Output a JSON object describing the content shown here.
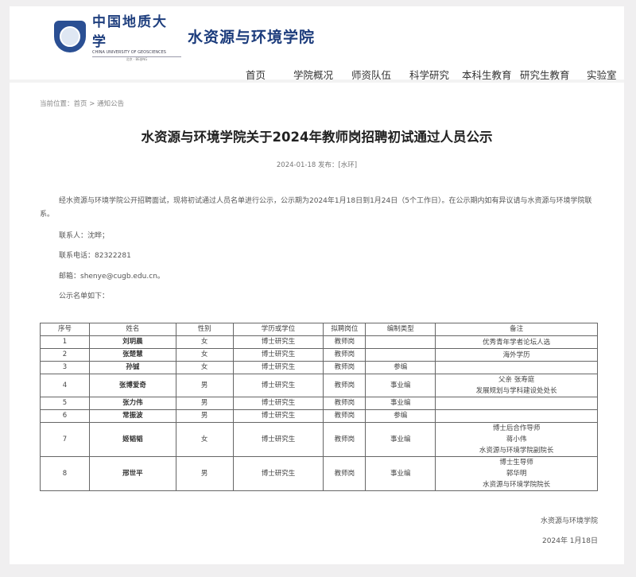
{
  "header": {
    "university_cn": "中国地质大学",
    "university_en": "CHINA UNIVERSITY OF GEOSCIENCES",
    "university_city": "北京 · BEIJING",
    "school": "水资源与环境学院",
    "nav": [
      "首页",
      "学院概况",
      "师资队伍",
      "科学研究",
      "本科生教育",
      "研究生教育",
      "实验室"
    ]
  },
  "breadcrumb": {
    "prefix": "当前位置：",
    "home": "首页",
    "sep": ">",
    "current": "通知公告"
  },
  "article": {
    "title": "水资源与环境学院关于2024年教师岗招聘初试通过人员公示",
    "meta": "2024-01-18 发布：[水环]",
    "intro": "经水资源与环境学院公开招聘面试，现将初试通过人员名单进行公示，公示期为2024年1月18日到1月24日（5个工作日）。在公示期内如有异议请与水资源与环境学院联系。",
    "contact": "联系人：沈晔；",
    "phone": "联系电话：82322281",
    "email": "邮箱：shenye@cugb.edu.cn。",
    "list_intro": "公示名单如下：",
    "signature": "水资源与环境学院",
    "date": "2024年 1月18日"
  },
  "table": {
    "headers": [
      "序号",
      "姓名",
      "性别",
      "学历或学位",
      "拟聘岗位",
      "编制类型",
      "备注"
    ],
    "rows": [
      [
        "1",
        "刘玥晨",
        "女",
        "博士研究生",
        "教师岗",
        "",
        [
          "优秀青年学者论坛人选"
        ]
      ],
      [
        "2",
        "张楚慧",
        "女",
        "博士研究生",
        "教师岗",
        "",
        [
          "海外学历"
        ]
      ],
      [
        "3",
        "孙铖",
        "女",
        "博士研究生",
        "教师岗",
        "参编",
        []
      ],
      [
        "4",
        "张博爱奇",
        "男",
        "博士研究生",
        "教师岗",
        "事业编",
        [
          "父亲 张寿庭",
          "发展规划与学科建设处处长"
        ]
      ],
      [
        "5",
        "张力伟",
        "男",
        "博士研究生",
        "教师岗",
        "事业编",
        []
      ],
      [
        "6",
        "常振波",
        "男",
        "博士研究生",
        "教师岗",
        "参编",
        []
      ],
      [
        "7",
        "姬韬韬",
        "女",
        "博士研究生",
        "教师岗",
        "事业编",
        [
          "博士后合作导师",
          "蒋小伟",
          "水资源与环境学院副院长"
        ]
      ],
      [
        "8",
        "邢世平",
        "男",
        "博士研究生",
        "教师岗",
        "事业编",
        [
          "博士生导师",
          "郭华明",
          "水资源与环境学院院长"
        ]
      ]
    ]
  }
}
